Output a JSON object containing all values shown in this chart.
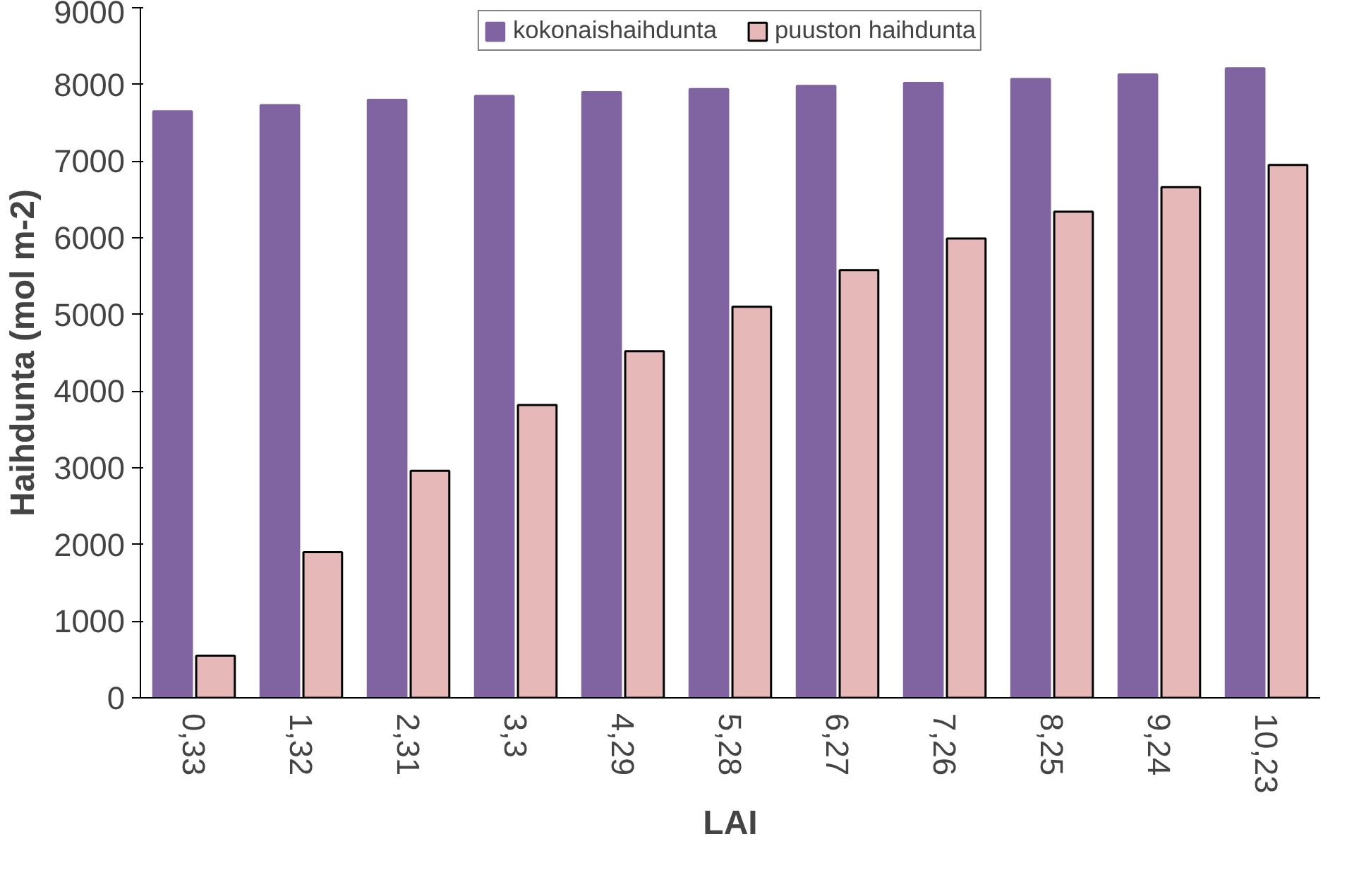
{
  "chart_data": {
    "type": "bar",
    "xlabel": "LAI",
    "ylabel": "Haihdunta (mol m-2)",
    "categories": [
      "0,33",
      "1,32",
      "2,31",
      "3,3",
      "4,29",
      "5,28",
      "6,27",
      "7,26",
      "8,25",
      "9,24",
      "10,23"
    ],
    "series": [
      {
        "name": "kokonaishaihdunta",
        "color": "#8064a2",
        "values": [
          7650,
          7730,
          7800,
          7850,
          7900,
          7940,
          7980,
          8020,
          8070,
          8130,
          8210
        ]
      },
      {
        "name": "puuston haihdunta",
        "color": "#e6b9b8",
        "values": [
          550,
          1900,
          2960,
          3820,
          4520,
          5100,
          5580,
          5990,
          6340,
          6660,
          6950
        ]
      }
    ],
    "ylim": [
      0,
      9000
    ],
    "yticks": [
      0,
      1000,
      2000,
      3000,
      4000,
      5000,
      6000,
      7000,
      8000,
      9000
    ],
    "grid": false,
    "legend": "top center"
  }
}
